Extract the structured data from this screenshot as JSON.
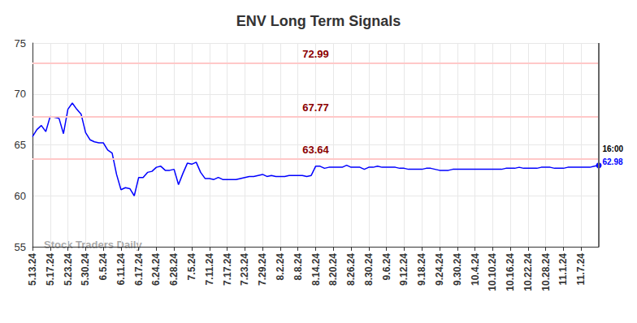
{
  "chart_data": {
    "type": "line",
    "title": "ENV Long Term Signals",
    "watermark": "Stock Traders Daily",
    "color": "#0000ff",
    "grid": true,
    "categories": [
      "5.13.24",
      null,
      null,
      null,
      "5.17.24",
      null,
      null,
      null,
      "5.23.24",
      null,
      null,
      null,
      "5.30.24",
      null,
      null,
      null,
      "6.5.24",
      null,
      null,
      null,
      "6.11.24",
      null,
      null,
      null,
      "6.17.24",
      null,
      null,
      null,
      "6.24.24",
      null,
      null,
      null,
      "6.28.24",
      null,
      null,
      null,
      "7.5.24",
      null,
      null,
      null,
      "7.11.24",
      null,
      null,
      null,
      "7.17.24",
      null,
      null,
      null,
      "7.23.24",
      null,
      null,
      null,
      "7.29.24",
      null,
      null,
      null,
      "8.2.24",
      null,
      null,
      null,
      "8.8.24",
      null,
      null,
      null,
      "8.14.24",
      null,
      null,
      null,
      "8.20.24",
      null,
      null,
      null,
      "8.26.24",
      null,
      null,
      null,
      "8.30.24",
      null,
      null,
      null,
      "9.6.24",
      null,
      null,
      null,
      "9.12.24",
      null,
      null,
      null,
      "9.18.24",
      null,
      null,
      null,
      "9.24.24",
      null,
      null,
      null,
      "9.30.24",
      null,
      null,
      null,
      "10.4.24",
      null,
      null,
      null,
      "10.10.24",
      null,
      null,
      null,
      "10.16.24",
      null,
      null,
      null,
      "10.22.24",
      null,
      null,
      null,
      "10.28.24",
      null,
      null,
      null,
      "11.1.24",
      null,
      null,
      null,
      "11.7.24",
      null,
      null,
      null,
      null
    ],
    "values": [
      65.8,
      66.5,
      66.9,
      66.3,
      67.8,
      67.7,
      67.6,
      66.1,
      68.5,
      69.1,
      68.5,
      68.0,
      66.2,
      65.5,
      65.3,
      65.2,
      65.2,
      64.5,
      64.2,
      62.1,
      60.6,
      60.8,
      60.7,
      60.0,
      61.8,
      61.8,
      62.3,
      62.4,
      62.8,
      62.9,
      62.5,
      62.5,
      62.6,
      61.1,
      62.2,
      63.2,
      63.1,
      63.3,
      62.3,
      61.7,
      61.7,
      61.6,
      61.8,
      61.6,
      61.6,
      61.6,
      61.6,
      61.7,
      61.8,
      61.9,
      61.9,
      62.0,
      62.1,
      61.9,
      62.0,
      61.9,
      61.9,
      61.9,
      62.0,
      62.0,
      62.0,
      62.0,
      61.9,
      62.0,
      62.9,
      62.9,
      62.7,
      62.8,
      62.8,
      62.8,
      62.8,
      63.0,
      62.8,
      62.8,
      62.8,
      62.6,
      62.8,
      62.8,
      62.9,
      62.8,
      62.8,
      62.8,
      62.8,
      62.7,
      62.7,
      62.6,
      62.6,
      62.6,
      62.6,
      62.7,
      62.7,
      62.6,
      62.5,
      62.5,
      62.5,
      62.6,
      62.6,
      62.6,
      62.6,
      62.6,
      62.6,
      62.6,
      62.6,
      62.6,
      62.6,
      62.6,
      62.6,
      62.7,
      62.7,
      62.7,
      62.8,
      62.7,
      62.7,
      62.7,
      62.7,
      62.8,
      62.8,
      62.8,
      62.7,
      62.7,
      62.7,
      62.8,
      62.8,
      62.8,
      62.8,
      62.8,
      62.8,
      62.9,
      62.98
    ],
    "last_label": "16:00",
    "hlines": [
      72.99,
      67.77,
      63.64
    ],
    "ylim": [
      55,
      75
    ],
    "yticks": [
      55,
      60,
      65,
      70,
      75
    ]
  }
}
